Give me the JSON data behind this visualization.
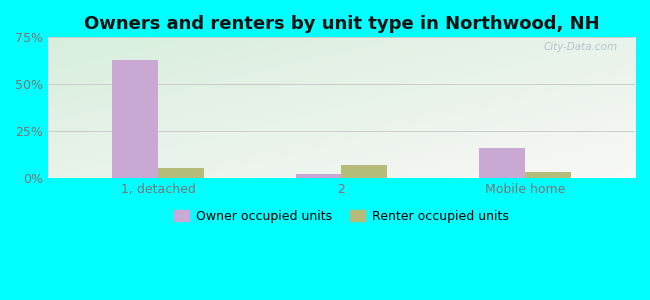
{
  "title": "Owners and renters by unit type in Northwood, NH",
  "categories": [
    "1, detached",
    "2",
    "Mobile home"
  ],
  "owner_values": [
    63,
    2,
    16
  ],
  "renter_values": [
    5,
    7,
    3
  ],
  "owner_color": "#c9a8d4",
  "renter_color": "#b5bc7a",
  "bar_width": 0.25,
  "ylim": [
    0,
    75
  ],
  "yticks": [
    0,
    25,
    50,
    75
  ],
  "ytick_labels": [
    "0%",
    "25%",
    "50%",
    "75%"
  ],
  "bg_topleft": "#d8eedd",
  "bg_bottomright": "#f8f8f5",
  "outer_color": "#00ffff",
  "title_fontsize": 13,
  "watermark": "City-Data.com",
  "legend_owner": "Owner occupied units",
  "legend_renter": "Renter occupied units",
  "tick_color": "#777777",
  "grid_color": "#cccccc"
}
